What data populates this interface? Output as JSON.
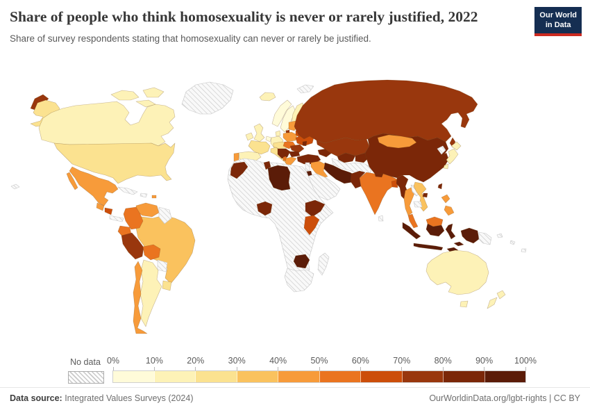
{
  "header": {
    "title": "Share of people who think homosexuality is never or rarely justified, 2022",
    "subtitle": "Share of survey respondents stating that homosexuality can never or rarely be justified.",
    "logo": {
      "line1": "Our World",
      "line2": "in Data",
      "navy": "#152e52",
      "red": "#cc2a20"
    }
  },
  "legend": {
    "no_data_label": "No data",
    "tick_labels": [
      "0%",
      "10%",
      "20%",
      "30%",
      "40%",
      "50%",
      "60%",
      "70%",
      "80%",
      "90%",
      "100%"
    ],
    "bin_labels": [
      "0-10%",
      "10-20%",
      "20-30%",
      "30-40%",
      "40-50%",
      "50-60%",
      "60-70%",
      "70-80%",
      "80-90%",
      "90-100%"
    ],
    "colors": [
      "#fffbd9",
      "#fdf2b7",
      "#fbe290",
      "#fac25e",
      "#f79b3a",
      "#ea7420",
      "#cc4e0a",
      "#99370d",
      "#7b2708",
      "#5b1c08"
    ]
  },
  "map": {
    "regions": {
      "chukotka": 7,
      "alaska": 2,
      "canada": 1,
      "arctic_islands": 1,
      "greenland": "nd",
      "iceland": 1,
      "usa": 2,
      "hawaii": "nd",
      "mexico": 4,
      "guatemala": 4,
      "nicaragua": 6,
      "costa_rica_panama": "nd",
      "cuba": "nd",
      "hispaniola": "nd",
      "puerto_rico": 4,
      "brazil": 3,
      "venezuela": 4,
      "guyanas": "nd",
      "colombia": 5,
      "ecuador": 5,
      "peru": 7,
      "bolivia": 5,
      "paraguay": "nd",
      "uruguay": 2,
      "argentina": 1,
      "chile": 4,
      "ireland": 1,
      "uk": 1,
      "norway": 0,
      "sweden": 0,
      "finland": 1,
      "denmark": 1,
      "germany": 1,
      "benelux": 0,
      "france": 2,
      "spain": 1,
      "portugal": 4,
      "central_europe": 2,
      "italy": 2,
      "poland": 4,
      "baltics": 4,
      "kaliningrad": 7,
      "belarus": 6,
      "ukraine": 6,
      "slovakia_hungary": 5,
      "romania": 7,
      "moldova": 8,
      "balkans": 8,
      "bulgaria": 8,
      "albania": 5,
      "greece": 4,
      "turkey": 8,
      "caucasus": 8,
      "russia": 7,
      "sakhalin": 7,
      "svalbard": "nd",
      "kazakhstan": 7,
      "uzbekistan": 8,
      "kyrgyzstan_tajikistan": 8,
      "turkmenistan_afghanistan": "nd",
      "iran": 9,
      "iraq": 4,
      "levant": "nd",
      "jordan": 9,
      "saudi_peninsula": "nd",
      "pakistan": 8,
      "india": 5,
      "nepal": 8,
      "bangladesh": 6,
      "sri_lanka": "nd",
      "myanmar": 8,
      "thailand": 4,
      "laos": "nd",
      "vietnam": 3,
      "cambodia": "nd",
      "malaysia_peninsula": 5,
      "indonesia_sumatra": 9,
      "indonesia_java": 9,
      "malaysia_borneo": 5,
      "indonesia_borneo": 9,
      "indonesia_sulawesi": 9,
      "indonesia_islands": 9,
      "indonesia_papua": 9,
      "png": "nd",
      "pacific_islands": "nd",
      "philippines": 4,
      "taiwan": 8,
      "hainan": 8,
      "china": 8,
      "mongolia": 4,
      "north_korea": "nd",
      "south_korea": 8,
      "japan": 1,
      "africa_nodata": "nd",
      "morocco": 8,
      "tunisia": 8,
      "libya": 9,
      "nigeria": 8,
      "ethiopia": 8,
      "kenya_tanzania": 6,
      "zimbabwe": 9,
      "southern_africa": "nd",
      "madagascar": "nd",
      "australia": 1,
      "tasmania": 1,
      "new_zealand": 1
    }
  },
  "footer": {
    "source_label": "Data source:",
    "source_value": " Integrated Values Surveys (2024)",
    "right_text": "OurWorldinData.org/lgbt-rights | CC BY"
  }
}
